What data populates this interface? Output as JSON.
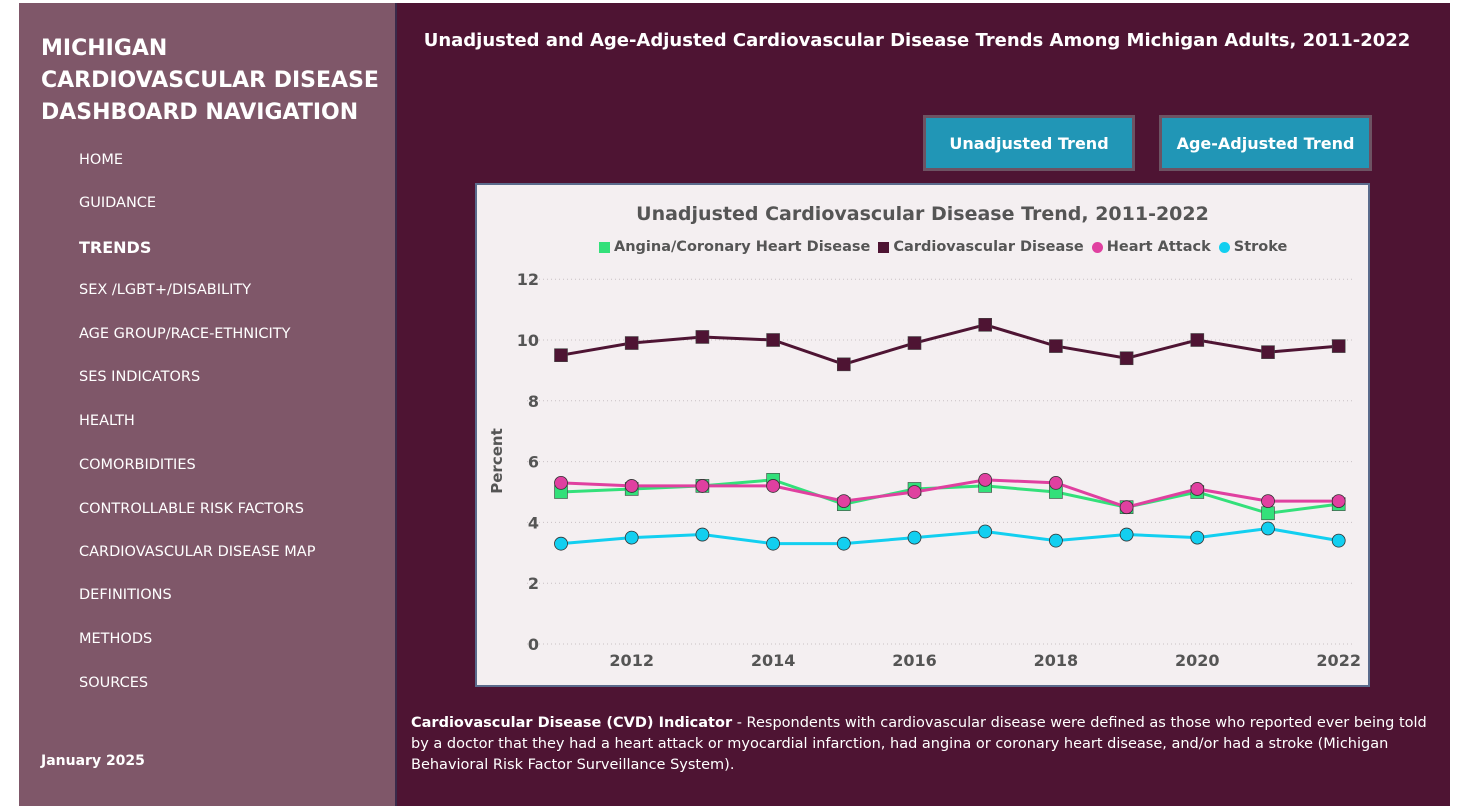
{
  "sidebar": {
    "title": "MICHIGAN CARDIOVASCULAR DISEASE DASHBOARD NAVIGATION",
    "items": [
      "HOME",
      "GUIDANCE",
      "TRENDS",
      "SEX /LGBT+/DISABILITY",
      "AGE GROUP/RACE-ETHNICITY",
      "SES INDICATORS",
      "HEALTH",
      "COMORBIDITIES",
      "CONTROLLABLE RISK FACTORS",
      "CARDIOVASCULAR DISEASE MAP",
      "DEFINITIONS",
      "METHODS",
      "SOURCES"
    ],
    "active": "TRENDS",
    "date": "January 2025"
  },
  "main": {
    "title": "Unadjusted and Age-Adjusted Cardiovascular Disease Trends Among Michigan Adults,  2011-2022",
    "buttons": {
      "unadjusted": "Unadjusted Trend",
      "age_adjusted": "Age-Adjusted Trend"
    },
    "description_bold": "Cardiovascular Disease (CVD) Indicator",
    "description": " - Respondents with cardiovascular disease were defined as those who reported ever being told by a doctor that they had a heart attack or myocardial infarction, had angina or coronary heart disease, and/or had a stroke (Michigan Behavioral Risk Factor Surveillance System)."
  },
  "chart_data": {
    "type": "line",
    "title": "Unadjusted Cardiovascular Disease Trend, 2011-2022",
    "xlabel": "",
    "ylabel": "Percent",
    "x": [
      2011,
      2012,
      2013,
      2014,
      2015,
      2016,
      2017,
      2018,
      2019,
      2020,
      2021,
      2022
    ],
    "xticks": [
      2012,
      2014,
      2016,
      2018,
      2020,
      2022
    ],
    "yticks": [
      0,
      2,
      4,
      6,
      8,
      10,
      12
    ],
    "ylim": [
      0,
      12
    ],
    "grid": true,
    "legend": "top",
    "series": [
      {
        "name": "Angina/Coronary Heart Disease",
        "color": "#33e07a",
        "marker": "square",
        "values": [
          5.0,
          5.1,
          5.2,
          5.4,
          4.6,
          5.1,
          5.2,
          5.0,
          4.5,
          5.0,
          4.3,
          4.6
        ]
      },
      {
        "name": "Cardiovascular Disease",
        "color": "#4e1433",
        "marker": "square",
        "values": [
          9.5,
          9.9,
          10.1,
          10.0,
          9.2,
          9.9,
          10.5,
          9.8,
          9.4,
          10.0,
          9.6,
          9.8
        ]
      },
      {
        "name": "Heart Attack",
        "color": "#e040a0",
        "marker": "circle",
        "values": [
          5.3,
          5.2,
          5.2,
          5.2,
          4.7,
          5.0,
          5.4,
          5.3,
          4.5,
          5.1,
          4.7,
          4.7
        ]
      },
      {
        "name": "Stroke",
        "color": "#12cff0",
        "marker": "circle",
        "values": [
          3.3,
          3.5,
          3.6,
          3.3,
          3.3,
          3.5,
          3.7,
          3.4,
          3.6,
          3.5,
          3.8,
          3.4
        ]
      }
    ]
  }
}
